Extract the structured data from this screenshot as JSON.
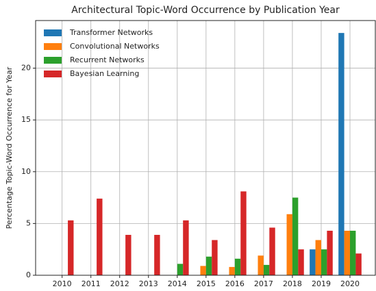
{
  "chart_data": {
    "type": "bar",
    "title": "Architectural Topic-Word Occurrence by Publication Year",
    "y_label": "Percentage Topic-Word Occurrence for Year",
    "categories": [
      "2010",
      "2011",
      "2012",
      "2013",
      "2014",
      "2015",
      "2016",
      "2017",
      "2018",
      "2019",
      "2020"
    ],
    "series": [
      {
        "name": "Transformer Networks",
        "color": "#1f77b4",
        "values": [
          0,
          0,
          0,
          0,
          0,
          0,
          0,
          0,
          0,
          2.5,
          23.4
        ]
      },
      {
        "name": "Convolutional Networks",
        "color": "#ff7f0e",
        "values": [
          0,
          0,
          0,
          0,
          0,
          0.9,
          0.8,
          1.9,
          5.9,
          3.4,
          4.3
        ]
      },
      {
        "name": "Recurrent Networks",
        "color": "#2ca02c",
        "values": [
          0,
          0,
          0,
          0,
          1.1,
          1.8,
          1.6,
          1.0,
          7.5,
          2.5,
          4.3
        ]
      },
      {
        "name": "Bayesian Learning",
        "color": "#d62728",
        "values": [
          5.3,
          7.4,
          3.9,
          3.9,
          5.3,
          3.4,
          8.1,
          4.6,
          2.5,
          4.3,
          2.1
        ]
      }
    ],
    "ylim": [
      0,
      24.6
    ],
    "yticks": [
      0,
      5,
      10,
      15,
      20
    ],
    "grid": true,
    "legend": "upper left"
  }
}
